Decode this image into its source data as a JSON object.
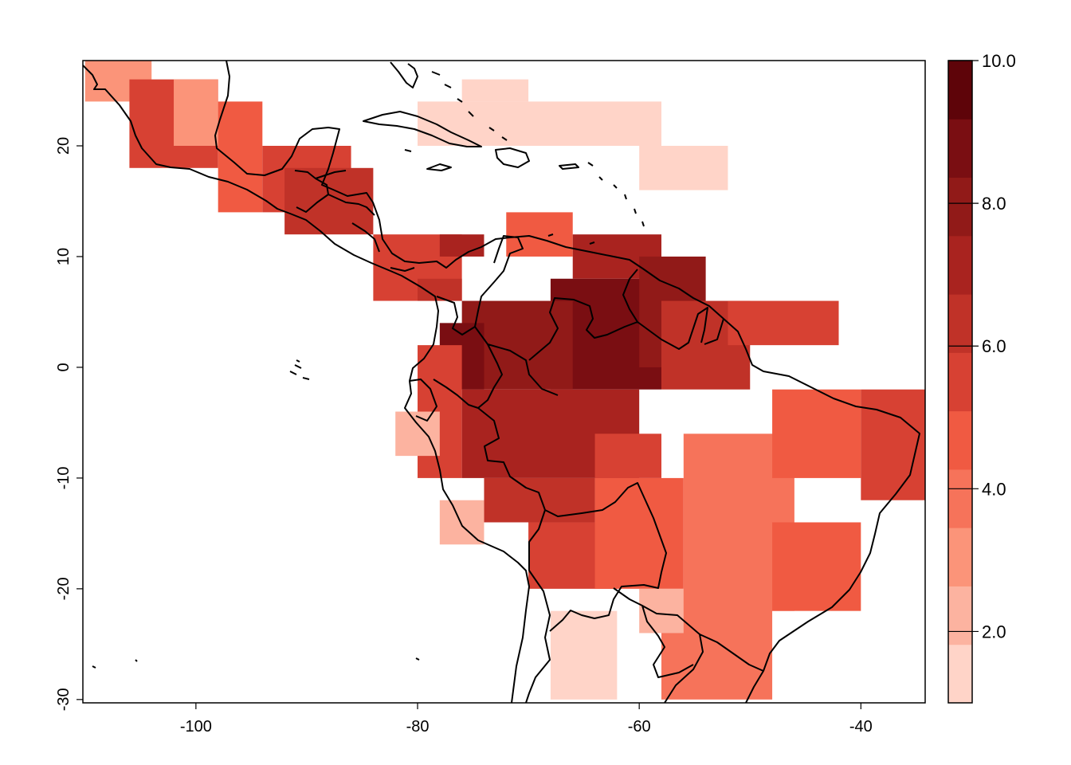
{
  "map": {
    "x_axis": {
      "range": [
        -110.2,
        -34.2
      ],
      "ticks": [
        {
          "value": -100,
          "label": "-100"
        },
        {
          "value": -80,
          "label": "-80"
        },
        {
          "value": -60,
          "label": "-60"
        },
        {
          "value": -40,
          "label": "-40"
        }
      ]
    },
    "y_axis": {
      "range": [
        -30.3,
        27.7
      ],
      "ticks": [
        {
          "value": 20,
          "label": "20"
        },
        {
          "value": 10,
          "label": "10"
        },
        {
          "value": 0,
          "label": "0"
        },
        {
          "value": -10,
          "label": "-10"
        },
        {
          "value": -20,
          "label": "-20"
        },
        {
          "value": -30,
          "label": "-30"
        }
      ]
    },
    "grid_resolution_deg": 2,
    "colorbar": {
      "min": 1.0,
      "max": 10.0,
      "colors": [
        "#FFD4C8",
        "#FCB3A0",
        "#FB9479",
        "#F6735A",
        "#F05A42",
        "#D74133",
        "#C03228",
        "#A9231F",
        "#911A18",
        "#7A0E12",
        "#5E0409"
      ],
      "ticks": [
        {
          "value": 2.0,
          "label": "2.0"
        },
        {
          "value": 4.0,
          "label": "4.0"
        },
        {
          "value": 6.0,
          "label": "6.0"
        },
        {
          "value": 8.0,
          "label": "8.0"
        },
        {
          "value": 10.0,
          "label": "10.0"
        }
      ]
    }
  }
}
